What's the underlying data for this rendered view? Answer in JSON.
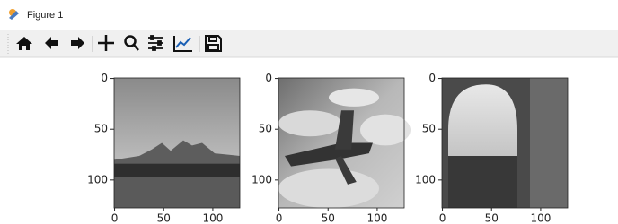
{
  "window": {
    "title": "Figure 1"
  },
  "chart_data": [
    {
      "type": "image",
      "xlim": [
        -0.5,
        127.5
      ],
      "ylim": [
        127.5,
        -0.5
      ],
      "xticks": [
        0,
        50,
        100
      ],
      "yticks": [
        0,
        50,
        100
      ]
    },
    {
      "type": "image",
      "xlim": [
        -0.5,
        127.5
      ],
      "ylim": [
        127.5,
        -0.5
      ],
      "xticks": [
        0,
        50,
        100
      ],
      "yticks": [
        0,
        50,
        100
      ]
    },
    {
      "type": "image",
      "xlim": [
        -0.5,
        127.5
      ],
      "ylim": [
        127.5,
        -0.5
      ],
      "xticks": [
        0,
        50,
        100
      ],
      "yticks": [
        0,
        50,
        100
      ]
    }
  ]
}
